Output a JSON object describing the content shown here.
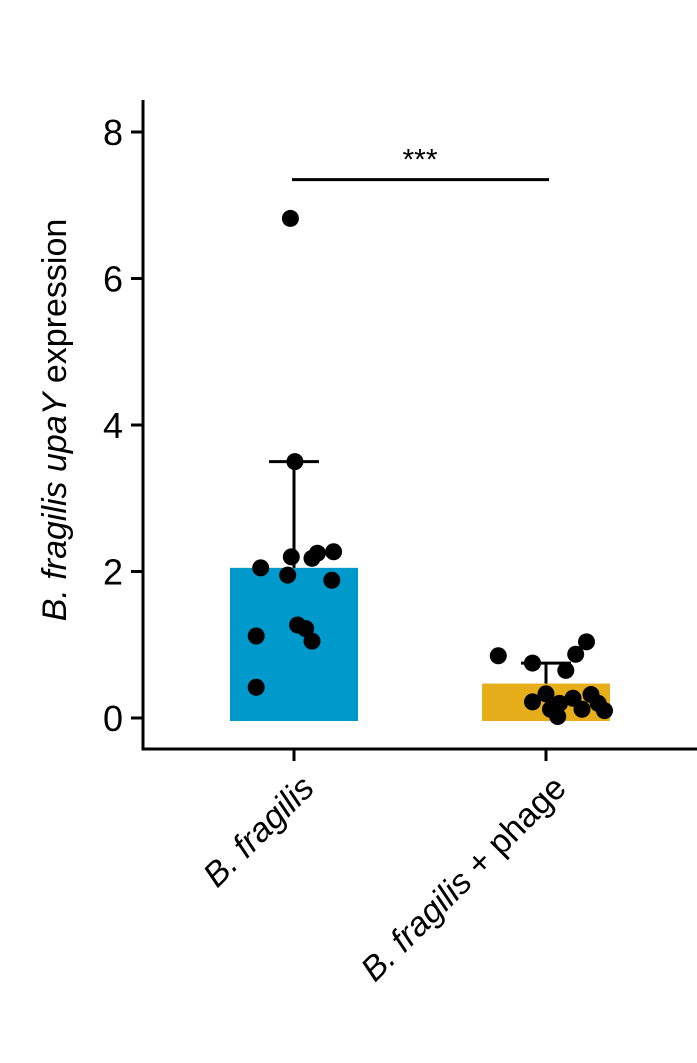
{
  "chart_data": {
    "type": "bar",
    "title": "",
    "ylabel": {
      "parts": [
        {
          "text": "B. fragilis upaY",
          "italic": true
        },
        {
          "text": " expression",
          "italic": false
        }
      ]
    },
    "xlabel": "",
    "ylim": [
      0,
      8
    ],
    "yticks": [
      0,
      2,
      4,
      6,
      8
    ],
    "categories": [
      {
        "parts": [
          {
            "text": "B. fragilis",
            "italic": true
          }
        ]
      },
      {
        "parts": [
          {
            "text": "B. fragilis",
            "italic": true
          },
          {
            "text": " + phage",
            "italic": false
          }
        ]
      }
    ],
    "bars": [
      {
        "value": 2.05,
        "error_upper": 3.5,
        "color": "#0099CC"
      },
      {
        "value": 0.47,
        "error_upper": 0.75,
        "color": "#E6AE1A"
      }
    ],
    "points": [
      [
        {
          "dx": -0.04,
          "y": 6.82
        },
        {
          "dx": 0.01,
          "y": 3.5
        },
        {
          "dx": -0.37,
          "y": 2.05
        },
        {
          "dx": -0.03,
          "y": 2.2
        },
        {
          "dx": 0.2,
          "y": 2.18
        },
        {
          "dx": 0.26,
          "y": 2.25
        },
        {
          "dx": 0.44,
          "y": 2.27
        },
        {
          "dx": -0.07,
          "y": 1.95
        },
        {
          "dx": 0.42,
          "y": 1.88
        },
        {
          "dx": -0.42,
          "y": 1.12
        },
        {
          "dx": 0.04,
          "y": 1.27
        },
        {
          "dx": 0.13,
          "y": 1.22
        },
        {
          "dx": 0.2,
          "y": 1.05
        },
        {
          "dx": -0.42,
          "y": 0.42
        }
      ],
      [
        {
          "dx": -0.53,
          "y": 0.85
        },
        {
          "dx": -0.15,
          "y": 0.75
        },
        {
          "dx": 0.33,
          "y": 0.87
        },
        {
          "dx": 0.45,
          "y": 1.04
        },
        {
          "dx": 0.22,
          "y": 0.65
        },
        {
          "dx": 0.0,
          "y": 0.33
        },
        {
          "dx": -0.15,
          "y": 0.22
        },
        {
          "dx": 0.15,
          "y": 0.2
        },
        {
          "dx": 0.3,
          "y": 0.27
        },
        {
          "dx": 0.5,
          "y": 0.32
        },
        {
          "dx": 0.58,
          "y": 0.2
        },
        {
          "dx": 0.05,
          "y": 0.12
        },
        {
          "dx": 0.4,
          "y": 0.12
        },
        {
          "dx": 0.65,
          "y": 0.1
        },
        {
          "dx": 0.13,
          "y": 0.02
        }
      ]
    ],
    "significance": {
      "label": "***",
      "y": 7.35
    }
  }
}
